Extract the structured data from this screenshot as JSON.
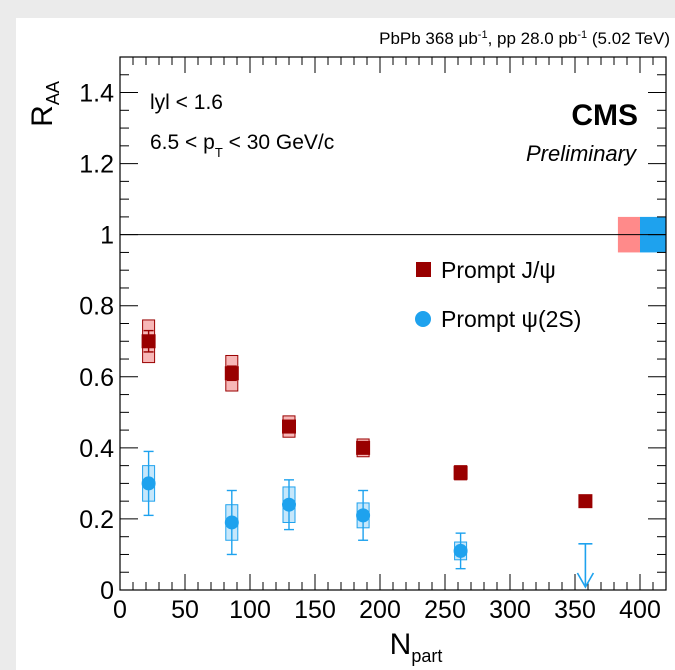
{
  "header": {
    "lumi_parts": [
      "PbPb 368 ",
      "μb",
      "-1",
      ", pp 28.0 pb",
      "-1",
      " (5.02 TeV)"
    ]
  },
  "labels": {
    "experiment": "CMS",
    "status": "Preliminary",
    "cut_rapidity": "lyl < 1.6",
    "cut_pt_parts": [
      "6.5 < p",
      "T",
      " < 30 GeV/c"
    ]
  },
  "axes": {
    "ylabel_main": "R",
    "ylabel_sub": "AA",
    "xlabel_main": "N",
    "xlabel_sub": "part"
  },
  "chart_data": {
    "type": "scatter",
    "xlim": [
      0,
      420
    ],
    "ylim": [
      0,
      1.5
    ],
    "xticks": [
      0,
      50,
      100,
      150,
      200,
      250,
      300,
      350,
      400
    ],
    "yticks": [
      0,
      0.2,
      0.4,
      0.6,
      0.8,
      1,
      1.2,
      1.4
    ],
    "ytick_labels": [
      "0",
      "0.2",
      "0.4",
      "0.6",
      "0.8",
      "1",
      "1.2",
      "1.4"
    ],
    "reference_line": 1,
    "series": [
      {
        "name": "Prompt J/ψ",
        "name_parts": [
          "Prompt J/",
          "ψ",
          ""
        ],
        "marker": "square",
        "color": "#990000",
        "syst_fill": "#f7b7b7",
        "global_unc_color": "#ff8a8a",
        "global_unc": 0.05,
        "points": [
          {
            "x": 22,
            "y": 0.7,
            "stat": 0.03,
            "syst": 0.06
          },
          {
            "x": 86,
            "y": 0.61,
            "stat": 0.02,
            "syst": 0.05
          },
          {
            "x": 130,
            "y": 0.46,
            "stat": 0.015,
            "syst": 0.03
          },
          {
            "x": 187,
            "y": 0.4,
            "stat": 0.01,
            "syst": 0.025
          },
          {
            "x": 262,
            "y": 0.33,
            "stat": 0.01,
            "syst": 0.02
          },
          {
            "x": 358,
            "y": 0.25,
            "stat": 0.005,
            "syst": 0.0
          }
        ]
      },
      {
        "name": "Prompt ψ(2S)",
        "name_parts": [
          "Prompt ",
          "ψ",
          "(2S)"
        ],
        "marker": "circle",
        "color": "#1ea2ee",
        "syst_fill": "#c6e7fb",
        "global_unc_color": "#1ea2ee",
        "global_unc": 0.05,
        "points": [
          {
            "x": 22,
            "y": 0.3,
            "stat": 0.09,
            "syst": 0.05
          },
          {
            "x": 86,
            "y": 0.19,
            "stat": 0.09,
            "syst": 0.05
          },
          {
            "x": 130,
            "y": 0.24,
            "stat": 0.07,
            "syst": 0.05
          },
          {
            "x": 187,
            "y": 0.21,
            "stat": 0.07,
            "syst": 0.035
          },
          {
            "x": 262,
            "y": 0.11,
            "stat": 0.05,
            "syst": 0.025
          }
        ],
        "upper_limits": [
          {
            "x": 358,
            "y": 0.13
          }
        ]
      }
    ]
  }
}
